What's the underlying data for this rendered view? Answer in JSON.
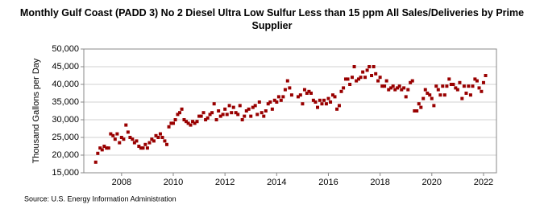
{
  "chart_data": {
    "type": "scatter",
    "title": "Monthly Gulf Coast (PADD 3) No 2 Diesel Ultra Low Sulfur Less than 15 ppm All Sales/Deliveries by Prime Supplier",
    "y_label": "Thousand Gallons per Day",
    "source": "Source: U.S. Energy Information Administration",
    "color": "#990000",
    "grid": true,
    "xlim": [
      2006.54,
      2022.5
    ],
    "xticks": [
      2008,
      2010,
      2012,
      2014,
      2016,
      2018,
      2020,
      2022
    ],
    "ylim": [
      15000,
      50000
    ],
    "yticks": [
      {
        "value": 15000,
        "label": "15,000"
      },
      {
        "value": 20000,
        "label": "20,000"
      },
      {
        "value": 25000,
        "label": "25,000"
      },
      {
        "value": 30000,
        "label": "30,000"
      },
      {
        "value": 35000,
        "label": "35,000"
      },
      {
        "value": 40000,
        "label": "40,000"
      },
      {
        "value": 45000,
        "label": "45,000"
      },
      {
        "value": 50000,
        "label": "50,000"
      }
    ],
    "x": [
      2007.0,
      2007.08,
      2007.17,
      2007.25,
      2007.33,
      2007.42,
      2007.5,
      2007.58,
      2007.67,
      2007.75,
      2007.83,
      2007.92,
      2008.0,
      2008.08,
      2008.17,
      2008.25,
      2008.33,
      2008.42,
      2008.5,
      2008.58,
      2008.67,
      2008.75,
      2008.83,
      2008.92,
      2009.0,
      2009.08,
      2009.17,
      2009.25,
      2009.33,
      2009.42,
      2009.5,
      2009.58,
      2009.67,
      2009.75,
      2009.83,
      2009.92,
      2010.0,
      2010.08,
      2010.17,
      2010.25,
      2010.33,
      2010.42,
      2010.5,
      2010.58,
      2010.67,
      2010.75,
      2010.83,
      2010.92,
      2011.0,
      2011.08,
      2011.17,
      2011.25,
      2011.33,
      2011.42,
      2011.5,
      2011.58,
      2011.67,
      2011.75,
      2011.83,
      2011.92,
      2012.0,
      2012.08,
      2012.17,
      2012.25,
      2012.33,
      2012.42,
      2012.5,
      2012.58,
      2012.67,
      2012.75,
      2012.83,
      2012.92,
      2013.0,
      2013.08,
      2013.17,
      2013.25,
      2013.33,
      2013.42,
      2013.5,
      2013.58,
      2013.67,
      2013.75,
      2013.83,
      2013.92,
      2014.0,
      2014.08,
      2014.17,
      2014.25,
      2014.33,
      2014.42,
      2014.5,
      2014.58,
      2014.83,
      2014.92,
      2015.0,
      2015.08,
      2015.17,
      2015.25,
      2015.33,
      2015.42,
      2015.5,
      2015.58,
      2015.67,
      2015.75,
      2015.83,
      2015.92,
      2016.0,
      2016.08,
      2016.17,
      2016.25,
      2016.33,
      2016.42,
      2016.5,
      2016.58,
      2016.67,
      2016.75,
      2016.83,
      2016.92,
      2017.0,
      2017.08,
      2017.17,
      2017.25,
      2017.33,
      2017.42,
      2017.5,
      2017.58,
      2017.67,
      2017.75,
      2017.83,
      2017.92,
      2018.0,
      2018.08,
      2018.17,
      2018.25,
      2018.33,
      2018.42,
      2018.5,
      2018.58,
      2018.67,
      2018.75,
      2018.83,
      2018.92,
      2019.0,
      2019.08,
      2019.17,
      2019.25,
      2019.33,
      2019.42,
      2019.5,
      2019.58,
      2019.67,
      2019.75,
      2019.83,
      2019.92,
      2020.0,
      2020.08,
      2020.17,
      2020.25,
      2020.33,
      2020.42,
      2020.5,
      2020.58,
      2020.67,
      2020.75,
      2020.83,
      2020.92,
      2021.0,
      2021.08,
      2021.17,
      2021.25,
      2021.33,
      2021.42,
      2021.5,
      2021.58,
      2021.67,
      2021.75,
      2021.83,
      2021.92,
      2022.0,
      2022.08
    ],
    "values": [
      18000,
      20500,
      22000,
      21500,
      22500,
      22000,
      22000,
      26000,
      25500,
      24500,
      26000,
      23500,
      25000,
      24500,
      28500,
      26500,
      25000,
      24500,
      23500,
      24000,
      22500,
      22000,
      22000,
      23000,
      22000,
      23500,
      24500,
      24000,
      25500,
      25000,
      26000,
      25000,
      24000,
      23000,
      28000,
      29000,
      29000,
      30000,
      31500,
      32000,
      33000,
      30000,
      29500,
      29000,
      28500,
      29500,
      29000,
      29500,
      31000,
      31000,
      32000,
      30000,
      30500,
      31500,
      32000,
      34500,
      30000,
      32500,
      31000,
      31500,
      33000,
      31500,
      34000,
      32000,
      33500,
      32000,
      31500,
      34000,
      30000,
      31000,
      32500,
      33000,
      31000,
      33500,
      34000,
      31500,
      35000,
      32000,
      31000,
      32500,
      34500,
      35000,
      33000,
      35500,
      35000,
      36500,
      35500,
      36500,
      38500,
      41000,
      39000,
      37000,
      36500,
      37000,
      34500,
      38500,
      37500,
      38000,
      37500,
      35500,
      35000,
      33500,
      35500,
      34500,
      35500,
      34500,
      36000,
      35000,
      37000,
      36500,
      33000,
      34000,
      38000,
      39000,
      41500,
      41500,
      40000,
      42000,
      45000,
      41000,
      41500,
      42000,
      43500,
      42000,
      44000,
      45000,
      42500,
      45000,
      43000,
      41000,
      42000,
      39500,
      39500,
      41000,
      38500,
      39000,
      39500,
      38500,
      39000,
      39500,
      38500,
      39000,
      36500,
      38500,
      40500,
      41000,
      32500,
      32500,
      34500,
      33500,
      36000,
      38500,
      37500,
      37000,
      36000,
      34000,
      39500,
      38500,
      37000,
      39500,
      37000,
      39500,
      41500,
      40000,
      40000,
      39000,
      38500,
      40500,
      36000,
      39500,
      37500,
      39500,
      37000,
      39500,
      41500,
      41000,
      39000,
      38000,
      40500,
      42500
    ]
  }
}
